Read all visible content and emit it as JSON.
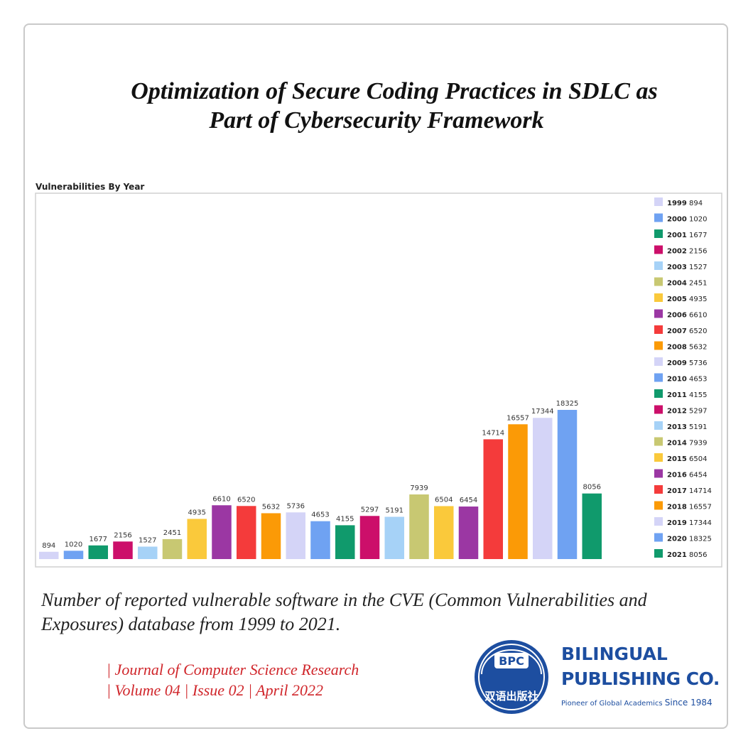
{
  "page": {
    "title_line1": "Optimization of Secure Coding Practices in SDLC as",
    "title_line2": "Part of Cybersecurity Framework",
    "caption": "Number of reported vulnerable software in the CVE (Common Vulnerabilities and Exposures) database from 1999 to 2021.",
    "journal_line1": "| Journal of Computer Science Research",
    "journal_line2": "| Volume 04 | Issue 02 | April 2022",
    "publisher_line1": "BILINGUAL",
    "publisher_line2": "PUBLISHING CO.",
    "publisher_tagline": "Pioneer of Global Academics",
    "publisher_since": "Since 1984",
    "logo_text": "BPC",
    "logo_chars": "双语出版社",
    "brand_color": "#1d4ea0",
    "journal_color": "#d0262b"
  },
  "chart_data": {
    "type": "bar",
    "title": "Vulnerabilities By Year",
    "xlabel": "",
    "ylabel": "",
    "ylim": [
      0,
      20000
    ],
    "grid": false,
    "legend_position": "right",
    "categories": [
      "1999",
      "2000",
      "2001",
      "2002",
      "2003",
      "2004",
      "2005",
      "2006",
      "2007",
      "2008",
      "2009",
      "2010",
      "2011",
      "2012",
      "2013",
      "2014",
      "2015",
      "2016",
      "2017",
      "2018",
      "2019",
      "2020",
      "2021"
    ],
    "values": [
      894,
      1020,
      1677,
      2156,
      1527,
      2451,
      4935,
      6610,
      6520,
      5632,
      5736,
      4653,
      4155,
      5297,
      5191,
      7939,
      6504,
      6454,
      14714,
      16557,
      17344,
      18325,
      8056
    ],
    "colors": [
      "#d4d4f7",
      "#6fa2f2",
      "#109a6c",
      "#cc0f6a",
      "#a6d2f7",
      "#c8c872",
      "#fac93b",
      "#9b37a3",
      "#f43b3b",
      "#fb9a06",
      "#d4d4f7",
      "#6fa2f2",
      "#109a6c",
      "#cc0f6a",
      "#a6d2f7",
      "#c8c872",
      "#fac93b",
      "#9b37a3",
      "#f43b3b",
      "#fb9a06",
      "#d4d4f7",
      "#6fa2f2",
      "#109a6c"
    ]
  }
}
